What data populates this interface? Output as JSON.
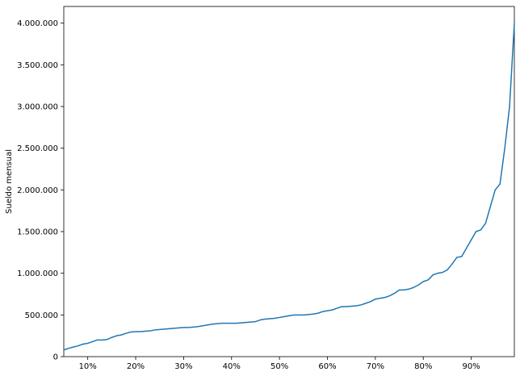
{
  "chart_data": {
    "type": "line",
    "title": "",
    "xlabel": "",
    "ylabel": "Sueldo mensual",
    "xlim": [
      5,
      99
    ],
    "ylim": [
      0,
      4200000
    ],
    "grid": false,
    "legend": "none",
    "x_ticks": [
      10,
      20,
      30,
      40,
      50,
      60,
      70,
      80,
      90
    ],
    "x_tick_labels": [
      "10%",
      "20%",
      "30%",
      "40%",
      "50%",
      "60%",
      "70%",
      "80%",
      "90%"
    ],
    "y_ticks": [
      0,
      500000,
      1000000,
      1500000,
      2000000,
      2500000,
      3000000,
      3500000,
      4000000
    ],
    "y_tick_labels": [
      "0",
      "500.000",
      "1.000.000",
      "1.500.000",
      "2.000.000",
      "2.500.000",
      "3.000.000",
      "3.500.000",
      "4.000.000"
    ],
    "line_color": "#1f77b4",
    "series": [
      {
        "x": [
          5,
          6,
          7,
          8,
          9,
          10,
          11,
          12,
          13,
          14,
          15,
          16,
          17,
          18,
          19,
          20,
          21,
          22,
          23,
          24,
          25,
          26,
          27,
          28,
          29,
          30,
          31,
          32,
          33,
          34,
          35,
          36,
          37,
          38,
          39,
          40,
          41,
          42,
          43,
          44,
          45,
          46,
          47,
          48,
          49,
          50,
          51,
          52,
          53,
          54,
          55,
          56,
          57,
          58,
          59,
          60,
          61,
          62,
          63,
          64,
          65,
          66,
          67,
          68,
          69,
          70,
          71,
          72,
          73,
          74,
          75,
          76,
          77,
          78,
          79,
          80,
          81,
          82,
          83,
          84,
          85,
          86,
          87,
          88,
          89,
          90,
          91,
          92,
          93,
          94,
          95,
          96,
          97,
          98,
          99
        ],
        "values": [
          80000,
          100000,
          115000,
          130000,
          150000,
          160000,
          180000,
          200000,
          200000,
          205000,
          230000,
          250000,
          260000,
          280000,
          295000,
          300000,
          300000,
          305000,
          310000,
          320000,
          325000,
          330000,
          335000,
          340000,
          345000,
          350000,
          350000,
          355000,
          360000,
          370000,
          380000,
          390000,
          395000,
          400000,
          400000,
          400000,
          400000,
          405000,
          410000,
          415000,
          420000,
          440000,
          450000,
          455000,
          460000,
          470000,
          480000,
          490000,
          500000,
          500000,
          500000,
          505000,
          510000,
          520000,
          540000,
          550000,
          560000,
          580000,
          600000,
          600000,
          605000,
          610000,
          620000,
          640000,
          660000,
          690000,
          700000,
          710000,
          730000,
          760000,
          800000,
          800000,
          810000,
          830000,
          860000,
          900000,
          920000,
          980000,
          1000000,
          1010000,
          1040000,
          1110000,
          1190000,
          1200000,
          1300000,
          1400000,
          1500000,
          1520000,
          1600000,
          1800000,
          2000000,
          2070000,
          2500000,
          3000000,
          4000000
        ]
      }
    ]
  }
}
